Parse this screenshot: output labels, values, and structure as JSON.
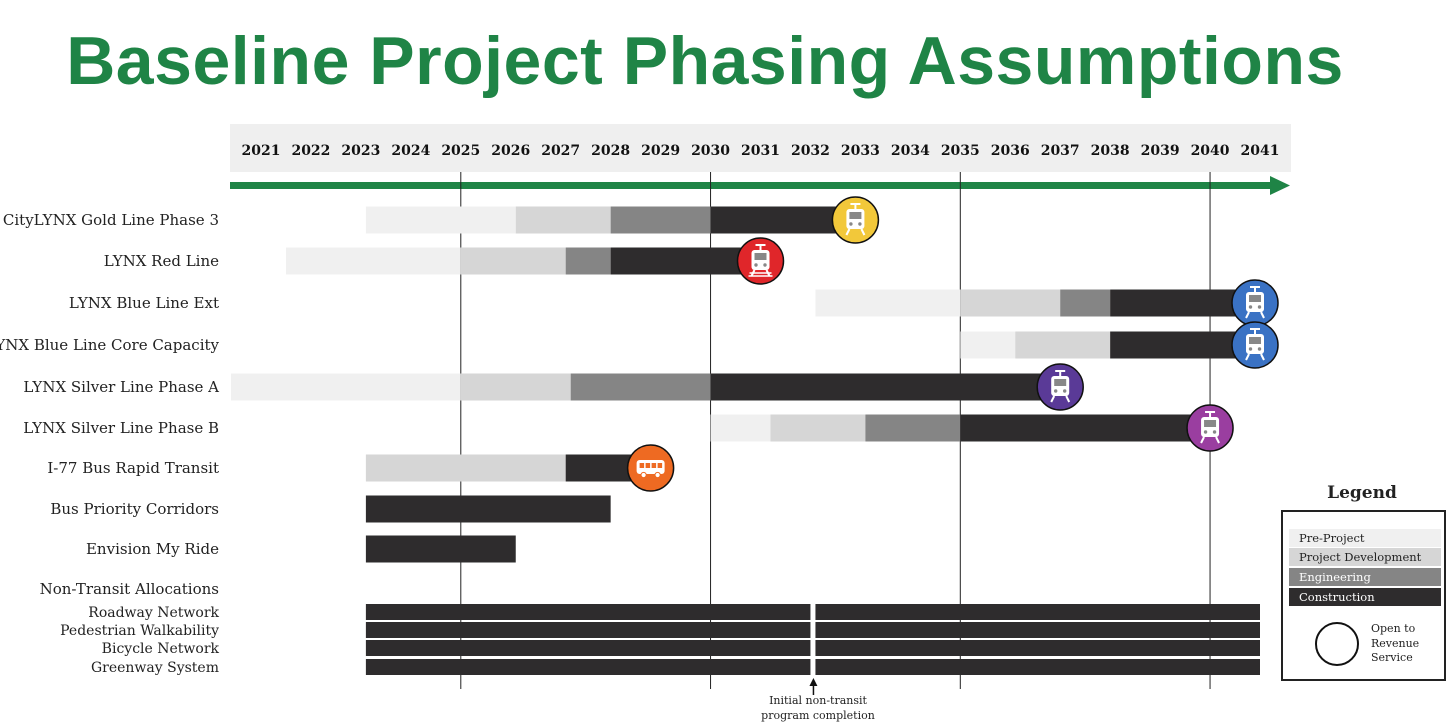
{
  "title": "Baseline Project Phasing Assumptions",
  "colors": {
    "title": "#1f8446",
    "arrow": "#1f8446",
    "year_band": "#efefef",
    "pre_project_development": "#f0f0f0",
    "project_development": "#d6d6d6",
    "engineering": "#858585",
    "construction": "#2e2c2d",
    "gold": "#f2c83a",
    "red": "#e0262a",
    "blue": "#3a72c4",
    "purple_dark": "#5a3a97",
    "purple": "#9a3ea0",
    "orange": "#ee6a22"
  },
  "legend": {
    "title": "Legend",
    "items": [
      "Pre-Project Development",
      "Project Development",
      "Engineering",
      "Construction"
    ],
    "open_label": "Open to Revenue Service"
  },
  "footnote": "Initial non-transit program completion",
  "chart_data": {
    "type": "gantt",
    "title": "Baseline Project Phasing Assumptions",
    "years": [
      "2021",
      "2022",
      "2023",
      "2024",
      "2025",
      "2026",
      "2027",
      "2028",
      "2029",
      "2030",
      "2031",
      "2032",
      "2033",
      "2034",
      "2035",
      "2036",
      "2037",
      "2038",
      "2039",
      "2040",
      "2041"
    ],
    "reference_lines": [
      2025,
      2030,
      2035,
      2040
    ],
    "phases": [
      "Pre-Project Development",
      "Project Development",
      "Engineering",
      "Construction"
    ],
    "projects": [
      {
        "name": "CityLYNX Gold Line Phase 3",
        "segments": [
          [
            2023.1,
            2026.1,
            0
          ],
          [
            2026.1,
            2028.0,
            1
          ],
          [
            2028.0,
            2030.0,
            2
          ],
          [
            2030.0,
            2032.9,
            3
          ]
        ],
        "open": 2032.9,
        "icon": "streetcar",
        "color": "gold"
      },
      {
        "name": "LYNX Red Line",
        "segments": [
          [
            2021.5,
            2025.0,
            0
          ],
          [
            2025.0,
            2027.1,
            1
          ],
          [
            2027.1,
            2028.0,
            2
          ],
          [
            2028.0,
            2031.0,
            3
          ]
        ],
        "open": 2031.0,
        "icon": "commuter-train",
        "color": "red"
      },
      {
        "name": "LYNX Blue Line Ext",
        "segments": [
          [
            2032.1,
            2035.0,
            0
          ],
          [
            2035.0,
            2037.0,
            1
          ],
          [
            2037.0,
            2038.0,
            2
          ],
          [
            2038.0,
            2040.9,
            3
          ]
        ],
        "open": 2040.9,
        "icon": "light-rail",
        "color": "blue"
      },
      {
        "name": "LYNX Blue Line Core Capacity",
        "segments": [
          [
            2035.0,
            2036.1,
            0
          ],
          [
            2036.1,
            2038.0,
            1
          ],
          [
            2038.0,
            2040.9,
            3
          ]
        ],
        "open": 2040.9,
        "icon": "light-rail",
        "color": "blue"
      },
      {
        "name": "LYNX Silver Line Phase A",
        "segments": [
          [
            2020.4,
            2025.0,
            0
          ],
          [
            2025.0,
            2027.2,
            1
          ],
          [
            2027.2,
            2030.0,
            2
          ],
          [
            2030.0,
            2037.0,
            3
          ]
        ],
        "open": 2037.0,
        "icon": "light-rail",
        "color": "purple_dark"
      },
      {
        "name": "LYNX Silver Line Phase B",
        "segments": [
          [
            2030.0,
            2031.2,
            0
          ],
          [
            2031.2,
            2033.1,
            1
          ],
          [
            2033.1,
            2035.0,
            2
          ],
          [
            2035.0,
            2040.0,
            3
          ]
        ],
        "open": 2040.0,
        "icon": "light-rail",
        "color": "purple"
      },
      {
        "name": "I-77 Bus Rapid Transit",
        "segments": [
          [
            2023.1,
            2027.1,
            1
          ],
          [
            2027.1,
            2028.8,
            3
          ]
        ],
        "open": 2028.8,
        "icon": "bus",
        "color": "orange"
      },
      {
        "name": "Bus Priority Corridors",
        "segments": [
          [
            2023.1,
            2028.0,
            3
          ]
        ]
      },
      {
        "name": "Envision My Ride",
        "segments": [
          [
            2023.1,
            2026.1,
            3
          ]
        ]
      }
    ],
    "non_transit": {
      "label": "Non-Transit Allocations",
      "items": [
        "Roadway Network",
        "Pedestrian Walkability",
        "Bicycle Network",
        "Greenway System"
      ],
      "segments": [
        [
          2023.1,
          2032.0,
          3
        ],
        [
          2032.1,
          2041.0,
          3
        ]
      ],
      "completion_year": 2032.0
    }
  }
}
